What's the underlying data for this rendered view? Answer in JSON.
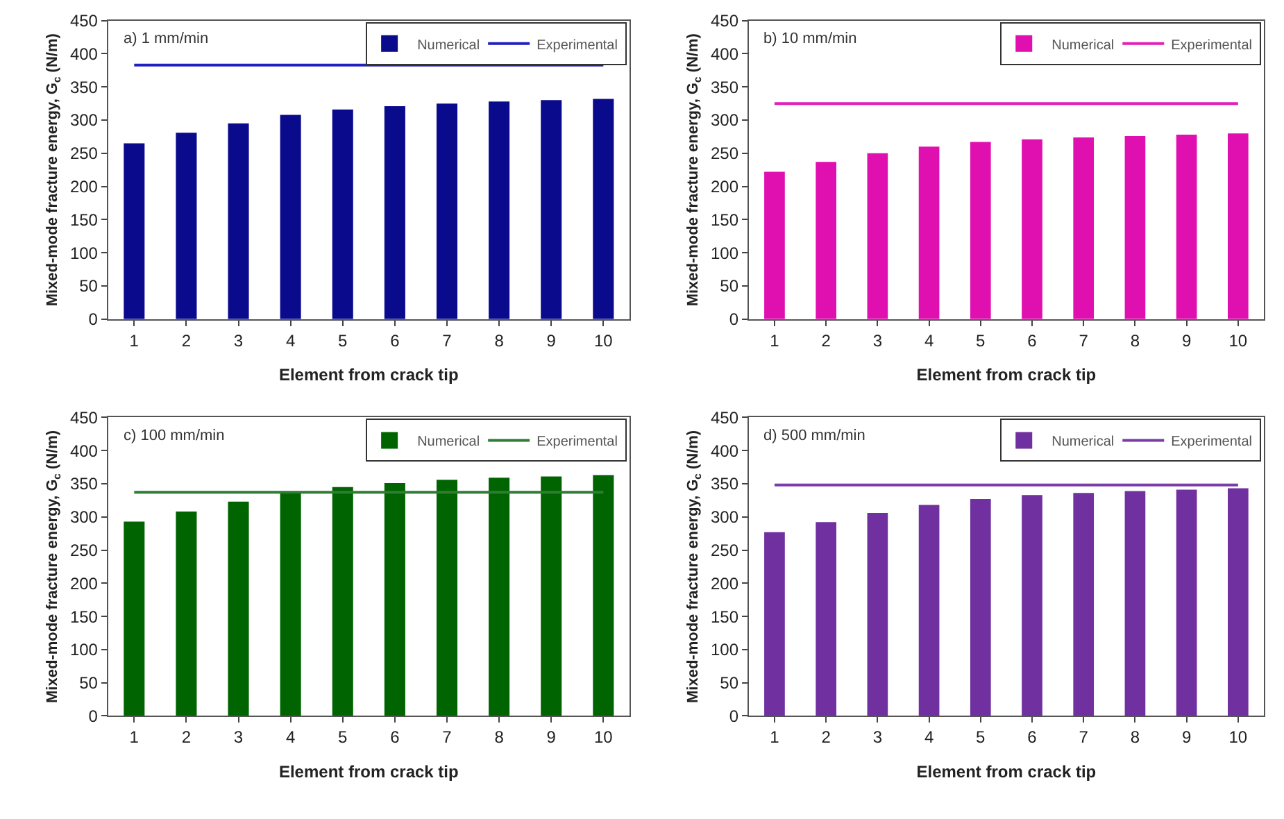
{
  "chart_data": [
    {
      "type": "bar",
      "title": "a) 1 mm/min",
      "xlabel": "Element from crack tip",
      "ylabel": "Mixed-mode fracture energy, G$_{c}$ (N/m)",
      "categories": [
        "1",
        "2",
        "3",
        "4",
        "5",
        "6",
        "7",
        "8",
        "9",
        "10"
      ],
      "series": [
        {
          "name": "Numerical",
          "color": "#0a0a8c",
          "values": [
            265,
            281,
            295,
            308,
            316,
            321,
            325,
            328,
            330,
            332
          ]
        },
        {
          "name": "Experimental",
          "type": "line",
          "color": "#2020c0",
          "values": [
            383,
            383,
            383,
            383,
            383,
            383,
            383,
            383,
            383,
            383
          ]
        }
      ],
      "ylim": [
        0,
        450
      ],
      "yticks": [
        0,
        50,
        100,
        150,
        200,
        250,
        300,
        350,
        400,
        450
      ],
      "grid": false,
      "legend": "top right",
      "marker": "none",
      "line_style": "solid"
    },
    {
      "type": "bar",
      "title": "b) 10 mm/min",
      "xlabel": "Element from crack tip",
      "ylabel": "Mixed-mode fracture energy, G$_{c}$ (N/m)",
      "categories": [
        "1",
        "2",
        "3",
        "4",
        "5",
        "6",
        "7",
        "8",
        "9",
        "10"
      ],
      "series": [
        {
          "name": "Numerical",
          "color": "#e010b0",
          "values": [
            222,
            237,
            250,
            260,
            267,
            271,
            274,
            276,
            278,
            280
          ]
        },
        {
          "name": "Experimental",
          "type": "line",
          "color": "#e020b8",
          "values": [
            325,
            325,
            325,
            325,
            325,
            325,
            325,
            325,
            325,
            325
          ]
        }
      ],
      "ylim": [
        0,
        450
      ],
      "yticks": [
        0,
        50,
        100,
        150,
        200,
        250,
        300,
        350,
        400,
        450
      ],
      "grid": false,
      "legend": "top right",
      "marker": "none",
      "line_style": "solid"
    },
    {
      "type": "bar",
      "title": "c) 100 mm/min",
      "xlabel": "Element from crack tip",
      "ylabel": "Mixed-mode fracture energy, G$_{c}$ (N/m)",
      "categories": [
        "1",
        "2",
        "3",
        "4",
        "5",
        "6",
        "7",
        "8",
        "9",
        "10"
      ],
      "series": [
        {
          "name": "Numerical",
          "color": "#006400",
          "values": [
            293,
            308,
            323,
            338,
            345,
            351,
            356,
            359,
            361,
            363
          ]
        },
        {
          "name": "Experimental",
          "type": "line",
          "color": "#2e7d32",
          "values": [
            337,
            337,
            337,
            337,
            337,
            337,
            337,
            337,
            337,
            337
          ]
        }
      ],
      "ylim": [
        0,
        450
      ],
      "yticks": [
        0,
        50,
        100,
        150,
        200,
        250,
        300,
        350,
        400,
        450
      ],
      "grid": false,
      "legend": "top right",
      "marker": "none",
      "line_style": "solid"
    },
    {
      "type": "bar",
      "title": "d) 500 mm/min",
      "xlabel": "Element from crack tip",
      "ylabel": "Mixed-mode fracture energy, G$_{c}$ (N/m)",
      "categories": [
        "1",
        "2",
        "3",
        "4",
        "5",
        "6",
        "7",
        "8",
        "9",
        "10"
      ],
      "series": [
        {
          "name": "Numerical",
          "color": "#7030a0",
          "values": [
            277,
            292,
            306,
            318,
            327,
            333,
            336,
            339,
            341,
            343
          ]
        },
        {
          "name": "Experimental",
          "type": "line",
          "color": "#7a3aa8",
          "values": [
            348,
            348,
            348,
            348,
            348,
            348,
            348,
            348,
            348,
            348
          ]
        }
      ],
      "ylim": [
        0,
        450
      ],
      "yticks": [
        0,
        50,
        100,
        150,
        200,
        250,
        300,
        350,
        400,
        450
      ],
      "grid": false,
      "legend": "top right",
      "marker": "none",
      "line_style": "solid"
    }
  ]
}
